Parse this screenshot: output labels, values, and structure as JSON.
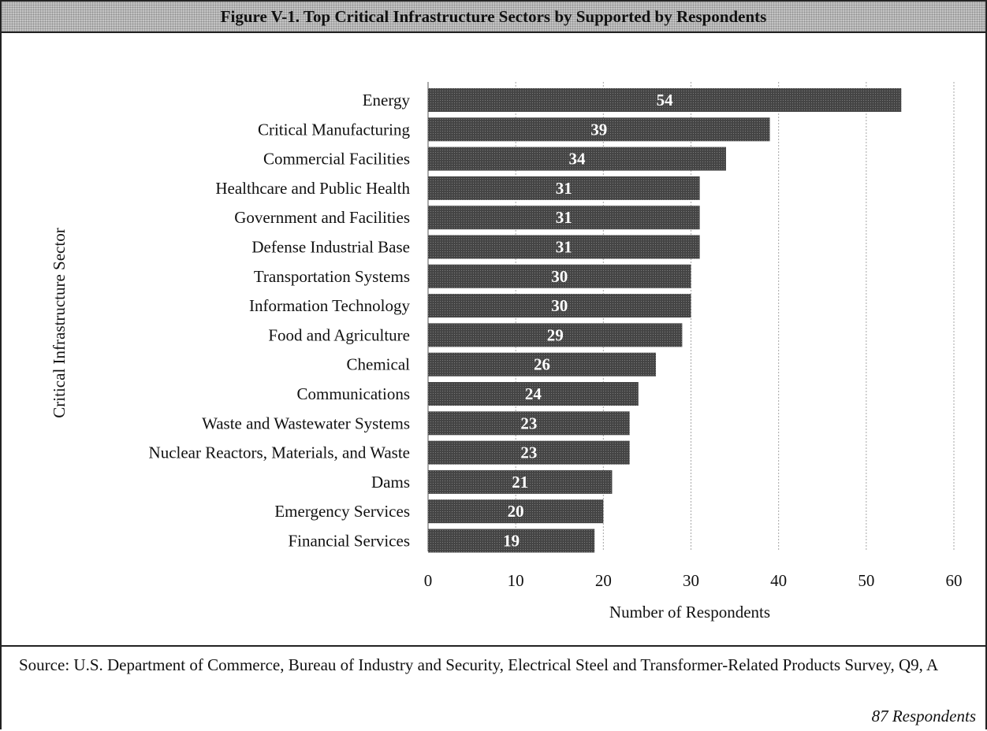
{
  "figure_title": "Figure V-1.  Top Critical Infrastructure Sectors by Supported by Respondents",
  "colors": {
    "bar": "#3f3f3f",
    "label": "#ffffff",
    "grid": "#a6a6a6",
    "title_bg": "#c4c4c4"
  },
  "chart_data": {
    "type": "bar",
    "orientation": "horizontal",
    "categories": [
      "Energy",
      "Critical Manufacturing",
      "Commercial Facilities",
      "Healthcare and Public Health",
      "Government and Facilities",
      "Defense Industrial Base",
      "Transportation Systems",
      "Information Technology",
      "Food and Agriculture",
      "Chemical",
      "Communications",
      "Waste and Wastewater Systems",
      "Nuclear Reactors, Materials, and Waste",
      "Dams",
      "Emergency Services",
      "Financial Services"
    ],
    "values": [
      54,
      39,
      34,
      31,
      31,
      31,
      30,
      30,
      29,
      26,
      24,
      23,
      23,
      21,
      20,
      19
    ],
    "xlabel": "Number of Respondents",
    "ylabel": "Critical Infrastructure Sector",
    "xlim": [
      0,
      60
    ],
    "xticks": [
      0,
      10,
      20,
      30,
      40,
      50,
      60
    ],
    "grid": "vertical",
    "data_labels": true
  },
  "source": "Source: U.S. Department of Commerce, Bureau of Industry and Security, Electrical Steel and Transformer-Related Products Survey, Q9, A",
  "respondents_note": "87 Respondents"
}
